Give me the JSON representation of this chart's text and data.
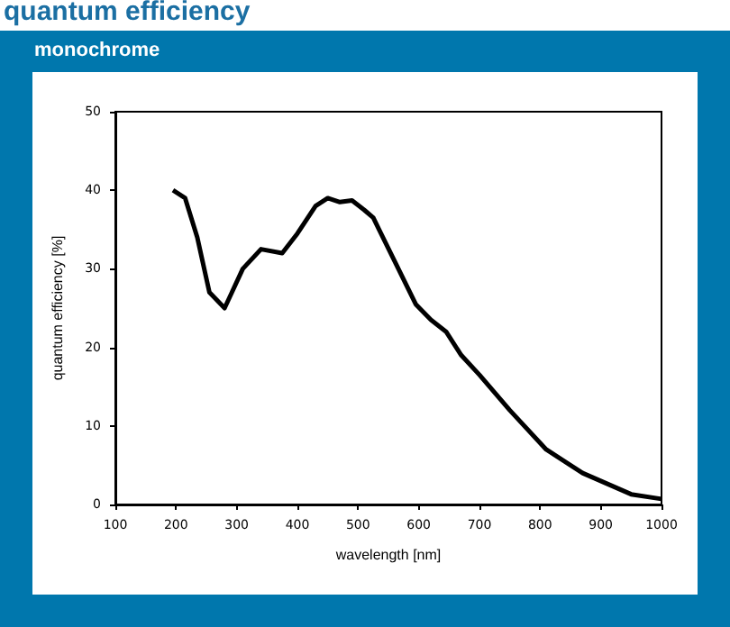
{
  "chart_data": {
    "type": "line",
    "title": "quantum efficiency",
    "subtitle": "monochrome",
    "xlabel": "wavelength [nm]",
    "ylabel": "quantum efficiency [%]",
    "x": [
      195,
      215,
      235,
      255,
      280,
      310,
      340,
      375,
      400,
      430,
      450,
      470,
      490,
      510,
      525,
      560,
      595,
      620,
      645,
      670,
      700,
      750,
      810,
      870,
      950,
      1000
    ],
    "series": [
      {
        "color": "#000000",
        "values": [
          40,
          39,
          34,
          27,
          25,
          30,
          32.5,
          32,
          34.5,
          38,
          39,
          38.5,
          38.7,
          37.5,
          36.5,
          31,
          25.5,
          23.5,
          22,
          19,
          16.5,
          12,
          7,
          4,
          1.3,
          0.7
        ]
      }
    ],
    "xlim": [
      100,
      1000
    ],
    "xticks": [
      100,
      200,
      300,
      400,
      500,
      600,
      700,
      800,
      900,
      1000
    ],
    "ylim": [
      0,
      50
    ],
    "yticks": [
      0,
      10,
      20,
      30,
      40,
      50
    ],
    "grid": false,
    "marker": "none",
    "line_style": "solid"
  }
}
